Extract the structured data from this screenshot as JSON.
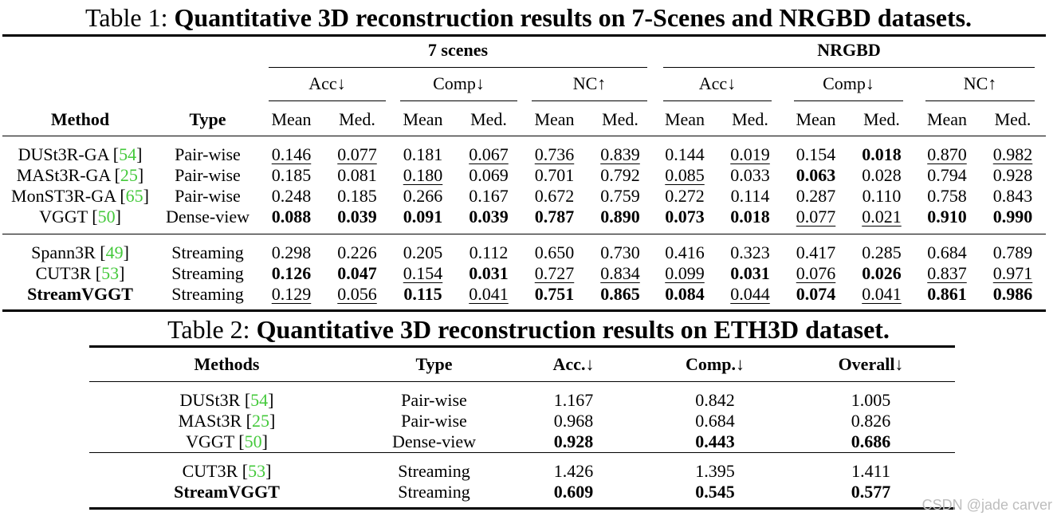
{
  "table1": {
    "caption_prefix": "Table 1:",
    "caption_title": "Quantitative 3D reconstruction results on 7-Scenes and NRGBD datasets.",
    "group_7scenes": "7 scenes",
    "group_nrgbd": "NRGBD",
    "metric_acc": "Acc↓",
    "metric_comp": "Comp↓",
    "metric_nc": "NC↑",
    "col_method": "Method",
    "col_type": "Type",
    "stat_mean": "Mean",
    "stat_med": "Med.",
    "rows": [
      {
        "method": "DUSt3R-GA",
        "cite": "54",
        "type": "Pair-wise",
        "v": [
          "0.146",
          "0.077",
          "0.181",
          "0.067",
          "0.736",
          "0.839",
          "0.144",
          "0.019",
          "0.154",
          "0.018",
          "0.870",
          "0.982"
        ]
      },
      {
        "method": "MASt3R-GA",
        "cite": "25",
        "type": "Pair-wise",
        "v": [
          "0.185",
          "0.081",
          "0.180",
          "0.069",
          "0.701",
          "0.792",
          "0.085",
          "0.033",
          "0.063",
          "0.028",
          "0.794",
          "0.928"
        ]
      },
      {
        "method": "MonST3R-GA",
        "cite": "65",
        "type": "Pair-wise",
        "v": [
          "0.248",
          "0.185",
          "0.266",
          "0.167",
          "0.672",
          "0.759",
          "0.272",
          "0.114",
          "0.287",
          "0.110",
          "0.758",
          "0.843"
        ]
      },
      {
        "method": "VGGT",
        "cite": "50",
        "type": "Dense-view",
        "v": [
          "0.088",
          "0.039",
          "0.091",
          "0.039",
          "0.787",
          "0.890",
          "0.073",
          "0.018",
          "0.077",
          "0.021",
          "0.910",
          "0.990"
        ]
      },
      {
        "method": "Spann3R",
        "cite": "49",
        "type": "Streaming",
        "v": [
          "0.298",
          "0.226",
          "0.205",
          "0.112",
          "0.650",
          "0.730",
          "0.416",
          "0.323",
          "0.417",
          "0.285",
          "0.684",
          "0.789"
        ]
      },
      {
        "method": "CUT3R",
        "cite": "53",
        "type": "Streaming",
        "v": [
          "0.126",
          "0.047",
          "0.154",
          "0.031",
          "0.727",
          "0.834",
          "0.099",
          "0.031",
          "0.076",
          "0.026",
          "0.837",
          "0.971"
        ]
      },
      {
        "method": "StreamVGGT",
        "cite": "",
        "type": "Streaming",
        "v": [
          "0.129",
          "0.056",
          "0.115",
          "0.041",
          "0.751",
          "0.865",
          "0.084",
          "0.044",
          "0.074",
          "0.041",
          "0.861",
          "0.986"
        ]
      }
    ]
  },
  "table2": {
    "caption_prefix": "Table 2:",
    "caption_title": "Quantitative 3D reconstruction results on ETH3D dataset.",
    "col_methods": "Methods",
    "col_type": "Type",
    "col_acc": "Acc.↓",
    "col_comp": "Comp.↓",
    "col_overall": "Overall↓",
    "rows": [
      {
        "method": "DUSt3R",
        "cite": "54",
        "type": "Pair-wise",
        "acc": "1.167",
        "comp": "0.842",
        "overall": "1.005"
      },
      {
        "method": "MASt3R",
        "cite": "25",
        "type": "Pair-wise",
        "acc": "0.968",
        "comp": "0.684",
        "overall": "0.826"
      },
      {
        "method": "VGGT",
        "cite": "50",
        "type": "Dense-view",
        "acc": "0.928",
        "comp": "0.443",
        "overall": "0.686"
      },
      {
        "method": "CUT3R",
        "cite": "53",
        "type": "Streaming",
        "acc": "1.426",
        "comp": "1.395",
        "overall": "1.411"
      },
      {
        "method": "StreamVGGT",
        "cite": "",
        "type": "Streaming",
        "acc": "0.609",
        "comp": "0.545",
        "overall": "0.577"
      }
    ]
  },
  "watermark": "CSDN @jade carver",
  "colors": {
    "citation": "#44c93b",
    "watermark": "#bdbdbd"
  }
}
